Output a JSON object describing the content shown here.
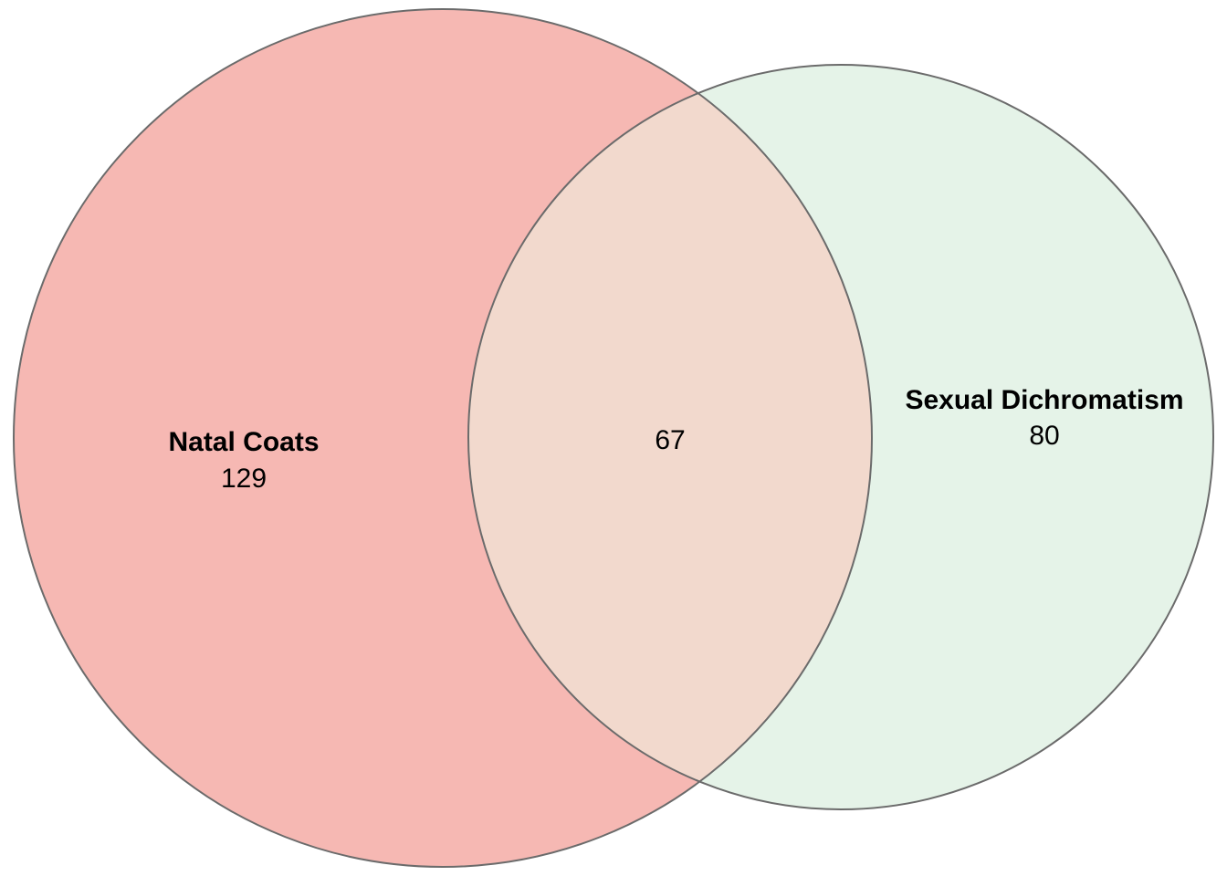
{
  "diagram": {
    "type": "venn",
    "sets": [
      {
        "name": "Natal Coats",
        "exclusive_count": "129",
        "color": "#f6b8b3"
      },
      {
        "name": "Sexual Dichromatism",
        "exclusive_count": "80",
        "color": "#e5f3e8"
      }
    ],
    "intersection": {
      "count": "67",
      "color": "#f2d9cd"
    },
    "outline_color": "#6b6b6b"
  }
}
